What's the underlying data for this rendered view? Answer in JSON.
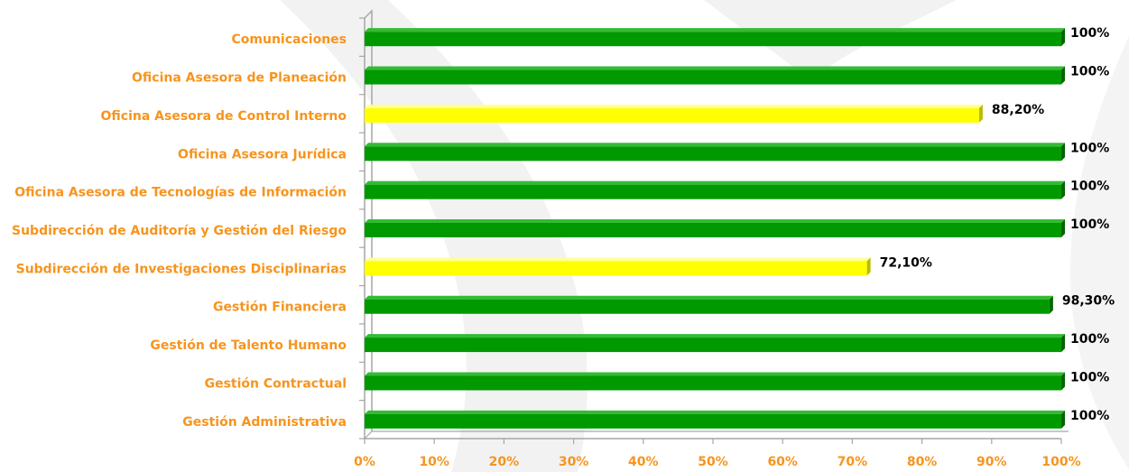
{
  "chart_data": {
    "type": "bar",
    "orientation": "horizontal",
    "categories": [
      "Comunicaciones",
      "Oficina Asesora de Planeación",
      "Oficina Asesora de Control Interno",
      "Oficina Asesora Jurídica",
      "Oficina Asesora de Tecnologías de Información",
      "Subdirección de Auditoría y Gestión del Riesgo",
      "Subdirección de Investigaciones Disciplinarias",
      "Gestión Financiera",
      "Gestión de Talento Humano",
      "Gestión Contractual",
      "Gestión Administrativa"
    ],
    "values": [
      100,
      100,
      88.2,
      100,
      100,
      100,
      72.1,
      98.3,
      100,
      100,
      100
    ],
    "data_labels": [
      "100%",
      "100%",
      "88,20%",
      "100%",
      "100%",
      "100%",
      "72,10%",
      "98,30%",
      "100%",
      "100%",
      "100%"
    ],
    "bar_colors": [
      "green",
      "green",
      "yellow",
      "green",
      "green",
      "green",
      "yellow",
      "green",
      "green",
      "green",
      "green"
    ],
    "xlim": [
      0,
      100
    ],
    "xticks": [
      "0%",
      "10%",
      "20%",
      "30%",
      "40%",
      "50%",
      "60%",
      "70%",
      "80%",
      "90%",
      "100%"
    ],
    "title": "",
    "xlabel": "",
    "ylabel": "",
    "grid": false,
    "legend": "none",
    "colors": {
      "green_front": "#009900",
      "green_top": "#33bb33",
      "green_side": "#006600",
      "yellow_front": "#ffff00",
      "yellow_top": "#ffff99",
      "yellow_side": "#bbbb00",
      "label_orange": "#f7941d",
      "axis": "#a6a6a6"
    }
  }
}
